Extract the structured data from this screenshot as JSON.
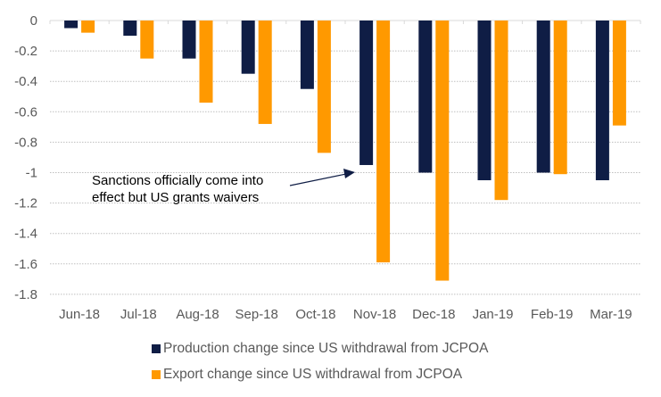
{
  "chart_data": {
    "type": "bar",
    "title": "",
    "xlabel": "",
    "ylabel": "",
    "ylim": [
      -1.8,
      0
    ],
    "yticks": [
      0,
      -0.2,
      -0.4,
      -0.6,
      -0.8,
      -1,
      -1.2,
      -1.4,
      -1.6,
      -1.8
    ],
    "ytick_labels": [
      "0",
      "-0.2",
      "-0.4",
      "-0.6",
      "-0.8",
      "-1",
      "-1.2",
      "-1.4",
      "-1.6",
      "-1.8"
    ],
    "grid": "horizontal dotted",
    "legend_position": "bottom",
    "categories": [
      "Jun-18",
      "Jul-18",
      "Aug-18",
      "Sep-18",
      "Oct-18",
      "Nov-18",
      "Dec-18",
      "Jan-19",
      "Feb-19",
      "Mar-19"
    ],
    "series": [
      {
        "name": "Production change since US withdrawal from JCPOA",
        "color": "#0F1D45",
        "values": [
          -0.05,
          -0.1,
          -0.25,
          -0.35,
          -0.45,
          -0.95,
          -1.0,
          -1.05,
          -1.0,
          -1.05
        ]
      },
      {
        "name": "Export change since US withdrawal from JCPOA",
        "color": "#FF9900",
        "values": [
          -0.08,
          -0.25,
          -0.54,
          -0.68,
          -0.87,
          -1.59,
          -1.71,
          -1.18,
          -1.01,
          -0.69
        ]
      }
    ],
    "annotations": [
      {
        "text_lines": [
          "Sanctions officially come into",
          "effect but US grants waivers"
        ],
        "arrow_target_category": "Nov-18",
        "arrow_target_value": -0.95
      }
    ]
  }
}
